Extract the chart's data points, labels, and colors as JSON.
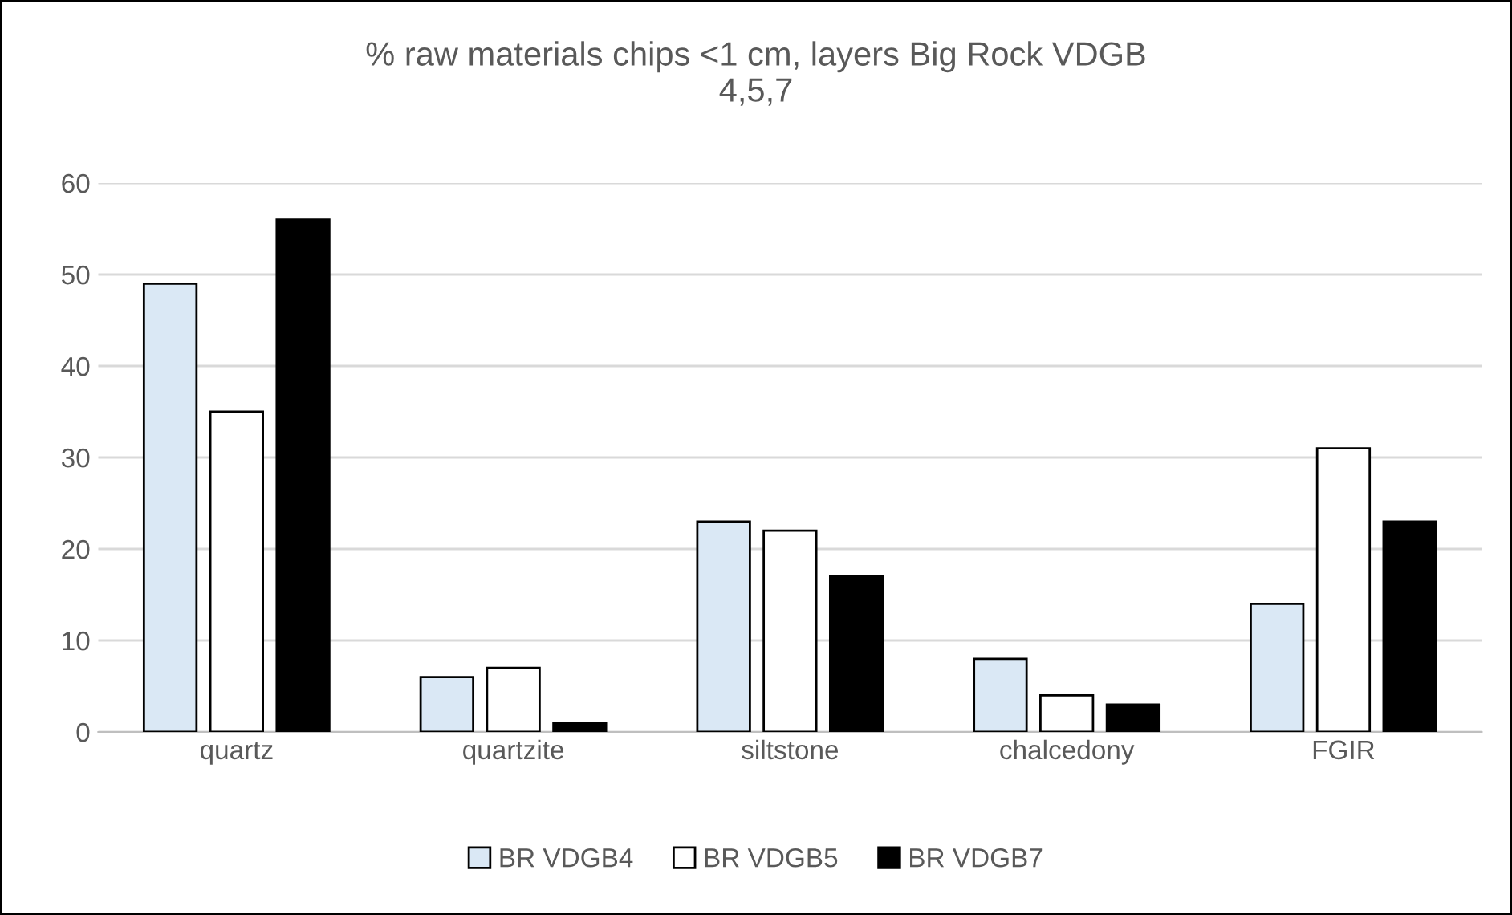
{
  "chart_data": {
    "type": "bar",
    "title": "% raw materials chips <1 cm, layers Big Rock VDGB\n4,5,7",
    "categories": [
      "quartz",
      "quartzite",
      "siltstone",
      "chalcedony",
      "FGIR"
    ],
    "series": [
      {
        "name": "BR VDGB4",
        "color": "#dae8f5",
        "values": [
          49,
          6,
          23,
          8,
          14
        ]
      },
      {
        "name": "BR VDGB5",
        "color": "#ffffff",
        "values": [
          35,
          7,
          22,
          4,
          31
        ]
      },
      {
        "name": "BR VDGB7",
        "color": "#000000",
        "values": [
          56,
          1,
          17,
          3,
          23
        ]
      }
    ],
    "ylim": [
      0,
      60
    ],
    "yticks": [
      0,
      10,
      20,
      30,
      40,
      50,
      60
    ],
    "grid": "y",
    "legend": "bottom"
  }
}
